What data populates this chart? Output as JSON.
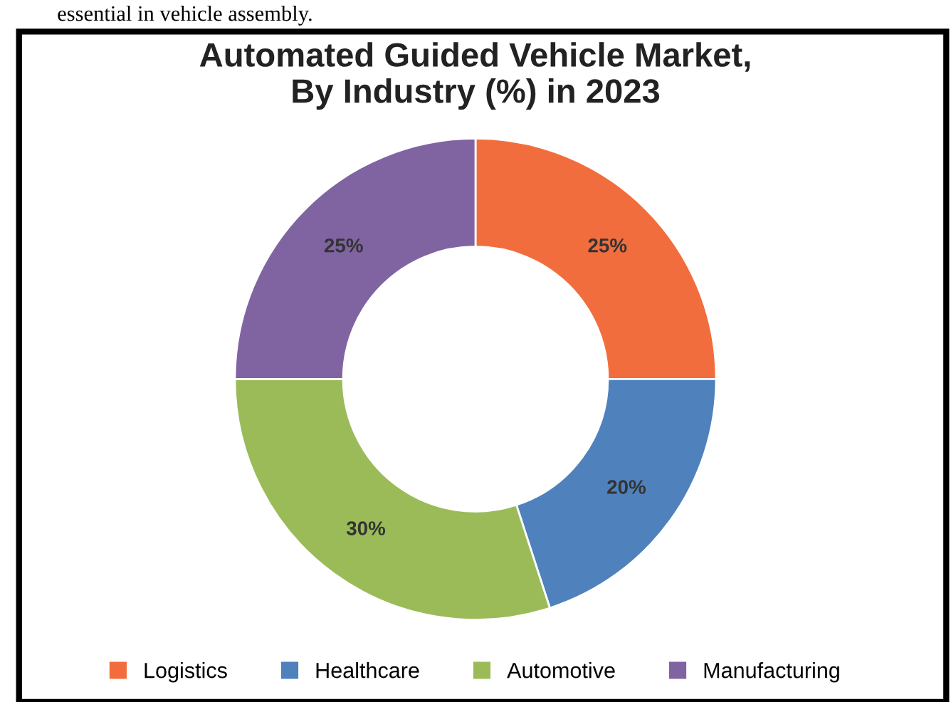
{
  "chart_data": {
    "type": "donut",
    "title": "Automated Guided Vehicle Market,\nBy Industry (%) in 2023",
    "categories": [
      "Logistics",
      "Healthcare",
      "Automotive",
      "Manufacturing"
    ],
    "values": [
      25,
      20,
      30,
      25
    ],
    "colors": [
      "#f26d3d",
      "#4f81bd",
      "#9bbb59",
      "#8064a2"
    ],
    "value_labels": [
      "25%",
      "20%",
      "30%",
      "25%"
    ],
    "legend": "bottom",
    "annotations": [
      "essential in vehicle assembly."
    ]
  }
}
